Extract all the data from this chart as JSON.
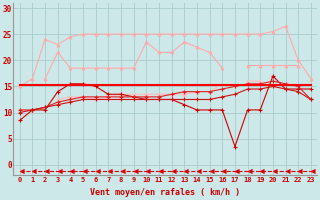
{
  "background_color": "#cce8e8",
  "grid_color": "#aacccc",
  "x_label": "Vent moyen/en rafales ( km/h )",
  "x_ticks": [
    0,
    1,
    2,
    3,
    4,
    5,
    6,
    7,
    8,
    9,
    10,
    11,
    12,
    13,
    14,
    15,
    16,
    17,
    18,
    19,
    20,
    21,
    22,
    23
  ],
  "ylim": [
    -2,
    31
  ],
  "yticks": [
    0,
    5,
    10,
    15,
    20,
    25,
    30
  ],
  "series": [
    {
      "name": "pink_top",
      "color": "#ffaaaa",
      "linewidth": 0.8,
      "marker": "^",
      "markersize": 2.0,
      "y": [
        15.0,
        16.5,
        24.0,
        23.0,
        24.5,
        25.0,
        25.0,
        25.0,
        25.0,
        25.0,
        25.0,
        25.0,
        25.0,
        25.0,
        25.0,
        25.0,
        25.0,
        25.0,
        25.0,
        25.0,
        25.5,
        26.5,
        20.0,
        16.5
      ]
    },
    {
      "name": "pink_mid_upper",
      "color": "#ffaaaa",
      "linewidth": 0.8,
      "marker": "^",
      "markersize": 2.0,
      "y": [
        null,
        null,
        16.5,
        21.5,
        18.5,
        18.5,
        18.5,
        18.5,
        18.5,
        18.5,
        23.5,
        21.5,
        21.5,
        23.5,
        22.5,
        21.5,
        18.5,
        null,
        19.0,
        19.0,
        19.0,
        19.0,
        19.0,
        null
      ]
    },
    {
      "name": "pink_mid_lower",
      "color": "#ffbbbb",
      "linewidth": 0.8,
      "marker": "^",
      "markersize": 2.0,
      "y": [
        null,
        null,
        null,
        12.5,
        13.0,
        13.0,
        12.5,
        13.0,
        13.5,
        13.5,
        13.5,
        13.5,
        13.5,
        13.5,
        14.0,
        14.0,
        15.5,
        null,
        16.0,
        16.0,
        null,
        null,
        null,
        null
      ]
    },
    {
      "name": "dark_red_spiky",
      "color": "#cc0000",
      "linewidth": 0.8,
      "marker": "+",
      "markersize": 3.0,
      "y": [
        8.5,
        10.5,
        10.5,
        14.0,
        15.5,
        15.5,
        15.0,
        13.5,
        13.5,
        13.0,
        12.5,
        12.5,
        12.5,
        11.5,
        10.5,
        10.5,
        10.5,
        3.5,
        10.5,
        10.5,
        17.0,
        14.5,
        14.5,
        14.5
      ]
    },
    {
      "name": "red_smooth_rising",
      "color": "#dd2222",
      "linewidth": 0.8,
      "marker": "+",
      "markersize": 2.5,
      "y": [
        10.5,
        10.5,
        11.0,
        12.0,
        12.5,
        13.0,
        13.0,
        13.0,
        13.0,
        13.0,
        13.0,
        13.0,
        13.5,
        14.0,
        14.0,
        14.0,
        14.5,
        15.0,
        15.5,
        15.5,
        16.0,
        15.5,
        15.0,
        12.5
      ]
    },
    {
      "name": "red_gradual",
      "color": "#cc1111",
      "linewidth": 0.8,
      "marker": "+",
      "markersize": 2.5,
      "y": [
        10.0,
        10.5,
        11.0,
        11.5,
        12.0,
        12.5,
        12.5,
        12.5,
        12.5,
        12.5,
        12.5,
        12.5,
        12.5,
        12.5,
        12.5,
        12.5,
        13.0,
        13.5,
        14.5,
        14.5,
        15.0,
        14.5,
        14.0,
        12.5
      ]
    },
    {
      "name": "bright_red_flat",
      "color": "#ff0000",
      "linewidth": 1.5,
      "marker": null,
      "markersize": 0,
      "y": [
        15.2,
        15.2,
        15.2,
        15.2,
        15.2,
        15.2,
        15.2,
        15.2,
        15.2,
        15.2,
        15.2,
        15.2,
        15.2,
        15.2,
        15.2,
        15.2,
        15.2,
        15.2,
        15.2,
        15.2,
        15.2,
        15.2,
        15.2,
        15.2
      ]
    },
    {
      "name": "dashed_arrow_bottom",
      "color": "#dd0000",
      "linewidth": 0.8,
      "marker": 4,
      "markersize": 3.5,
      "linestyle": "--",
      "y": [
        -1.2,
        -1.2,
        -1.2,
        -1.2,
        -1.2,
        -1.2,
        -1.2,
        -1.2,
        -1.2,
        -1.2,
        -1.2,
        -1.2,
        -1.2,
        -1.2,
        -1.2,
        -1.2,
        -1.2,
        -1.2,
        -1.2,
        -1.2,
        -1.2,
        -1.2,
        -1.2,
        -1.2
      ]
    }
  ]
}
